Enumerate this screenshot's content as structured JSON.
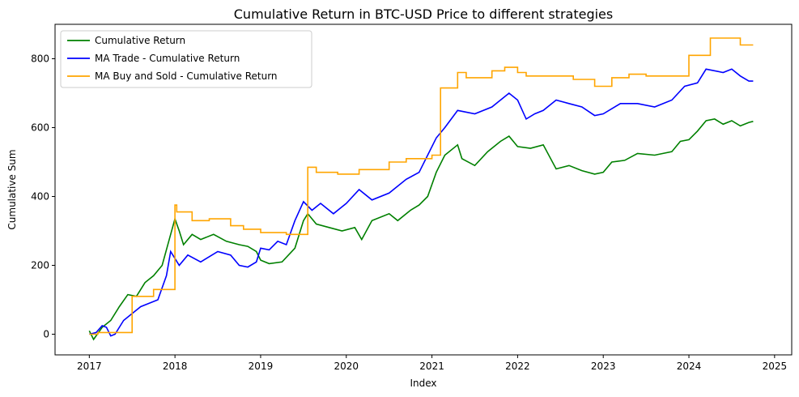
{
  "chart_data": {
    "type": "line",
    "title": "Cumulative Return in BTC-USD Price to different strategies",
    "xlabel": "Index",
    "ylabel": "Cumulative Sum",
    "xlim": [
      2016.6,
      2025.2
    ],
    "ylim": [
      -60,
      900
    ],
    "xticks": [
      2017,
      2018,
      2019,
      2020,
      2021,
      2022,
      2023,
      2024,
      2025
    ],
    "xtick_labels": [
      "2017",
      "2018",
      "2019",
      "2020",
      "2021",
      "2022",
      "2023",
      "2024",
      "2025"
    ],
    "yticks": [
      0,
      200,
      400,
      600,
      800
    ],
    "ytick_labels": [
      "0",
      "200",
      "400",
      "600",
      "800"
    ],
    "grid": false,
    "legend_position": "top-left",
    "series": [
      {
        "name": "Cumulative Return",
        "color": "#008000",
        "step": false,
        "points": [
          [
            2017.0,
            10
          ],
          [
            2017.05,
            -15
          ],
          [
            2017.15,
            20
          ],
          [
            2017.25,
            40
          ],
          [
            2017.35,
            80
          ],
          [
            2017.45,
            115
          ],
          [
            2017.55,
            110
          ],
          [
            2017.65,
            150
          ],
          [
            2017.75,
            170
          ],
          [
            2017.85,
            200
          ],
          [
            2017.95,
            290
          ],
          [
            2018.0,
            335
          ],
          [
            2018.05,
            300
          ],
          [
            2018.1,
            260
          ],
          [
            2018.2,
            290
          ],
          [
            2018.3,
            275
          ],
          [
            2018.45,
            290
          ],
          [
            2018.6,
            270
          ],
          [
            2018.75,
            260
          ],
          [
            2018.85,
            255
          ],
          [
            2018.95,
            240
          ],
          [
            2019.0,
            215
          ],
          [
            2019.1,
            205
          ],
          [
            2019.25,
            210
          ],
          [
            2019.4,
            250
          ],
          [
            2019.5,
            330
          ],
          [
            2019.55,
            350
          ],
          [
            2019.65,
            320
          ],
          [
            2019.8,
            310
          ],
          [
            2019.95,
            300
          ],
          [
            2020.1,
            310
          ],
          [
            2020.18,
            275
          ],
          [
            2020.3,
            330
          ],
          [
            2020.5,
            350
          ],
          [
            2020.6,
            330
          ],
          [
            2020.75,
            360
          ],
          [
            2020.85,
            375
          ],
          [
            2020.95,
            400
          ],
          [
            2021.05,
            470
          ],
          [
            2021.15,
            520
          ],
          [
            2021.3,
            550
          ],
          [
            2021.35,
            510
          ],
          [
            2021.5,
            490
          ],
          [
            2021.65,
            530
          ],
          [
            2021.8,
            560
          ],
          [
            2021.9,
            575
          ],
          [
            2022.0,
            545
          ],
          [
            2022.15,
            540
          ],
          [
            2022.3,
            550
          ],
          [
            2022.45,
            480
          ],
          [
            2022.6,
            490
          ],
          [
            2022.75,
            475
          ],
          [
            2022.9,
            465
          ],
          [
            2023.0,
            470
          ],
          [
            2023.1,
            500
          ],
          [
            2023.25,
            505
          ],
          [
            2023.4,
            525
          ],
          [
            2023.6,
            520
          ],
          [
            2023.8,
            530
          ],
          [
            2023.9,
            560
          ],
          [
            2024.0,
            565
          ],
          [
            2024.1,
            590
          ],
          [
            2024.2,
            620
          ],
          [
            2024.3,
            625
          ],
          [
            2024.4,
            610
          ],
          [
            2024.5,
            620
          ],
          [
            2024.6,
            605
          ],
          [
            2024.7,
            615
          ],
          [
            2024.75,
            618
          ]
        ]
      },
      {
        "name": "MA Trade - Cumulative Return",
        "color": "#0000ff",
        "step": false,
        "points": [
          [
            2017.0,
            0
          ],
          [
            2017.08,
            5
          ],
          [
            2017.15,
            25
          ],
          [
            2017.2,
            20
          ],
          [
            2017.25,
            -5
          ],
          [
            2017.3,
            0
          ],
          [
            2017.4,
            40
          ],
          [
            2017.5,
            60
          ],
          [
            2017.6,
            80
          ],
          [
            2017.7,
            90
          ],
          [
            2017.8,
            100
          ],
          [
            2017.9,
            170
          ],
          [
            2017.95,
            240
          ],
          [
            2018.05,
            200
          ],
          [
            2018.15,
            230
          ],
          [
            2018.3,
            210
          ],
          [
            2018.5,
            240
          ],
          [
            2018.65,
            230
          ],
          [
            2018.75,
            200
          ],
          [
            2018.85,
            195
          ],
          [
            2018.95,
            210
          ],
          [
            2019.0,
            250
          ],
          [
            2019.1,
            245
          ],
          [
            2019.2,
            270
          ],
          [
            2019.3,
            260
          ],
          [
            2019.4,
            330
          ],
          [
            2019.5,
            385
          ],
          [
            2019.6,
            360
          ],
          [
            2019.7,
            380
          ],
          [
            2019.85,
            350
          ],
          [
            2019.95,
            370
          ],
          [
            2020.0,
            380
          ],
          [
            2020.15,
            420
          ],
          [
            2020.3,
            390
          ],
          [
            2020.5,
            410
          ],
          [
            2020.7,
            450
          ],
          [
            2020.85,
            470
          ],
          [
            2020.95,
            520
          ],
          [
            2021.05,
            570
          ],
          [
            2021.15,
            600
          ],
          [
            2021.3,
            650
          ],
          [
            2021.5,
            640
          ],
          [
            2021.7,
            660
          ],
          [
            2021.9,
            700
          ],
          [
            2022.0,
            680
          ],
          [
            2022.1,
            625
          ],
          [
            2022.2,
            640
          ],
          [
            2022.3,
            650
          ],
          [
            2022.45,
            680
          ],
          [
            2022.6,
            670
          ],
          [
            2022.75,
            660
          ],
          [
            2022.9,
            635
          ],
          [
            2023.0,
            640
          ],
          [
            2023.2,
            670
          ],
          [
            2023.4,
            670
          ],
          [
            2023.6,
            660
          ],
          [
            2023.8,
            680
          ],
          [
            2023.95,
            720
          ],
          [
            2024.1,
            730
          ],
          [
            2024.2,
            770
          ],
          [
            2024.4,
            760
          ],
          [
            2024.5,
            770
          ],
          [
            2024.6,
            750
          ],
          [
            2024.7,
            735
          ],
          [
            2024.75,
            735
          ]
        ]
      },
      {
        "name": "MA Buy and Sold - Cumulative Return",
        "color": "#ffa500",
        "step": true,
        "points": [
          [
            2017.0,
            0
          ],
          [
            2017.1,
            5
          ],
          [
            2017.5,
            110
          ],
          [
            2017.75,
            130
          ],
          [
            2018.0,
            375
          ],
          [
            2018.02,
            355
          ],
          [
            2018.2,
            330
          ],
          [
            2018.4,
            335
          ],
          [
            2018.65,
            315
          ],
          [
            2018.8,
            305
          ],
          [
            2019.0,
            295
          ],
          [
            2019.3,
            290
          ],
          [
            2019.55,
            485
          ],
          [
            2019.65,
            470
          ],
          [
            2019.9,
            465
          ],
          [
            2020.15,
            478
          ],
          [
            2020.5,
            500
          ],
          [
            2020.7,
            510
          ],
          [
            2021.0,
            520
          ],
          [
            2021.1,
            715
          ],
          [
            2021.3,
            760
          ],
          [
            2021.4,
            745
          ],
          [
            2021.7,
            765
          ],
          [
            2021.85,
            775
          ],
          [
            2022.0,
            760
          ],
          [
            2022.1,
            750
          ],
          [
            2022.65,
            740
          ],
          [
            2022.9,
            720
          ],
          [
            2023.1,
            745
          ],
          [
            2023.3,
            755
          ],
          [
            2023.5,
            750
          ],
          [
            2024.0,
            810
          ],
          [
            2024.25,
            860
          ],
          [
            2024.6,
            840
          ],
          [
            2024.75,
            840
          ]
        ]
      }
    ]
  }
}
